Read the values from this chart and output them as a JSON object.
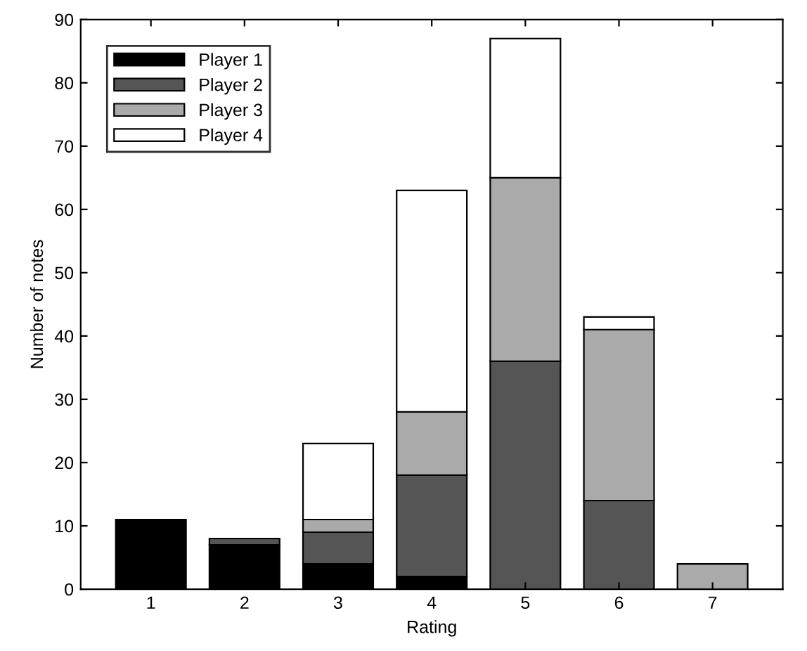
{
  "chart_data": {
    "type": "bar",
    "stacked": true,
    "xlabel": "Rating",
    "ylabel": "Number of notes",
    "categories": [
      "1",
      "2",
      "3",
      "4",
      "5",
      "6",
      "7"
    ],
    "series": [
      {
        "name": "Player 1",
        "color": "#000000",
        "values": [
          11,
          7,
          4,
          2,
          null,
          null,
          null
        ]
      },
      {
        "name": "Player 2",
        "color": "#555555",
        "values": [
          null,
          1,
          5,
          16,
          36,
          14,
          null
        ]
      },
      {
        "name": "Player 3",
        "color": "#aaaaaa",
        "values": [
          null,
          null,
          2,
          10,
          29,
          27,
          4
        ]
      },
      {
        "name": "Player 4",
        "color": "#ffffff",
        "values": [
          null,
          null,
          12,
          35,
          22,
          2,
          null
        ]
      }
    ],
    "ylim": [
      0,
      90
    ],
    "yticks": [
      0,
      10,
      20,
      30,
      40,
      50,
      60,
      70,
      80,
      90
    ],
    "grid": false,
    "legend": "top left"
  }
}
